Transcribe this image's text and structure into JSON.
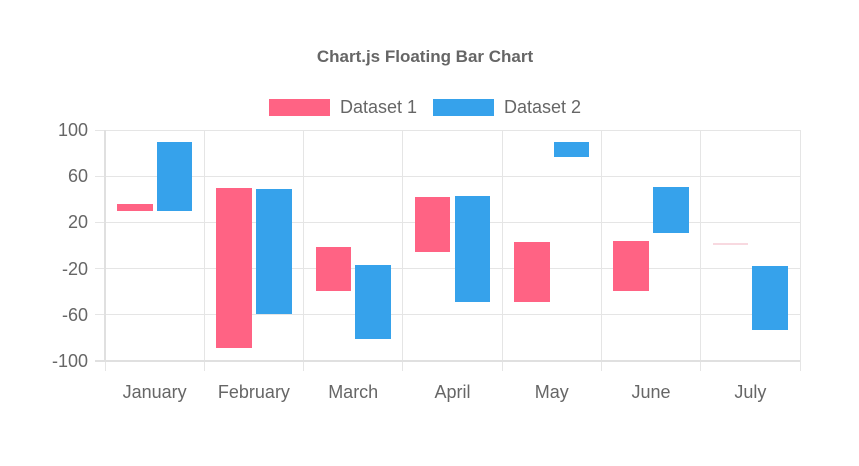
{
  "chart_data": {
    "type": "bar",
    "subtype": "floating",
    "title": "Chart.js Floating Bar Chart",
    "categories": [
      "January",
      "February",
      "March",
      "April",
      "May",
      "June",
      "July"
    ],
    "series": [
      {
        "name": "Dataset 1",
        "color": "#FF6384",
        "hairline_color": "#F8D9E0",
        "ranges": [
          [
            30,
            36
          ],
          [
            -89,
            50
          ],
          [
            -39,
            -1
          ],
          [
            -6,
            42
          ],
          [
            -49,
            3
          ],
          [
            -39,
            4
          ],
          [
            2,
            2
          ]
        ]
      },
      {
        "name": "Dataset 2",
        "color": "#36A2EB",
        "hairline_color": "#D4EAFA",
        "ranges": [
          [
            30,
            90
          ],
          [
            -59,
            49
          ],
          [
            -81,
            -17
          ],
          [
            -49,
            43
          ],
          [
            77,
            90
          ],
          [
            11,
            51
          ],
          [
            -73,
            -18
          ]
        ]
      }
    ],
    "xlabel": "",
    "ylabel": "",
    "ylim": [
      -100,
      100
    ],
    "y_ticks": [
      100,
      60,
      20,
      -20,
      -60,
      -100
    ],
    "grid": true,
    "legend_position": "top"
  },
  "colors": {
    "grid": "#e5e5e5",
    "axis_border": "#e0e0e0",
    "text": "#666666",
    "background": "#ffffff"
  }
}
